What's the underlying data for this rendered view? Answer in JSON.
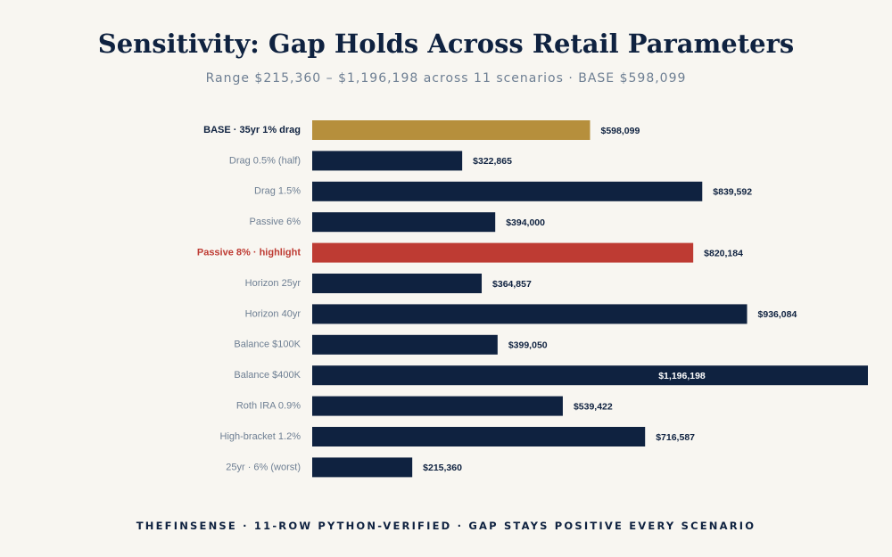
{
  "header": {
    "title": "Sensitivity: Gap Holds Across Retail Parameters",
    "subtitle": "Range $215,360 – $1,196,198 across 11 scenarios · BASE $598,099"
  },
  "footer": {
    "text": "THEFINSENSE · 11-ROW PYTHON-VERIFIED · GAP STAYS POSITIVE EVERY SCENARIO"
  },
  "colors": {
    "base": "#b68f3c",
    "highlight": "#be3b33",
    "default": "#0f2240",
    "label_default": "#6e7f93",
    "value_text": "#0f2240",
    "value_text_inside": "#ffffff",
    "background": "#f8f6f1"
  },
  "chart_data": {
    "type": "bar",
    "orientation": "horizontal",
    "grid": false,
    "categories": [
      "BASE · 35yr 1% drag",
      "Drag 0.5% (half)",
      "Drag 1.5%",
      "Passive 6%",
      "Passive 8% · highlight",
      "Horizon 25yr",
      "Horizon 40yr",
      "Balance $100K",
      "Balance $400K",
      "Roth IRA 0.9%",
      "High-bracket 1.2%",
      "25yr · 6% (worst)"
    ],
    "values": [
      598099,
      322865,
      839592,
      394000,
      820184,
      364857,
      936084,
      399050,
      1196198,
      539422,
      716587,
      215360
    ],
    "value_labels": [
      "$598,099",
      "$322,865",
      "$839,592",
      "$394,000",
      "$820,184",
      "$364,857",
      "$936,084",
      "$399,050",
      "$1,196,198",
      "$539,422",
      "$716,587",
      "$215,360"
    ],
    "styles": [
      "base",
      "default",
      "default",
      "default",
      "highlight",
      "default",
      "default",
      "default",
      "default",
      "default",
      "default",
      "default"
    ],
    "xlim": [
      0,
      1196198
    ]
  }
}
